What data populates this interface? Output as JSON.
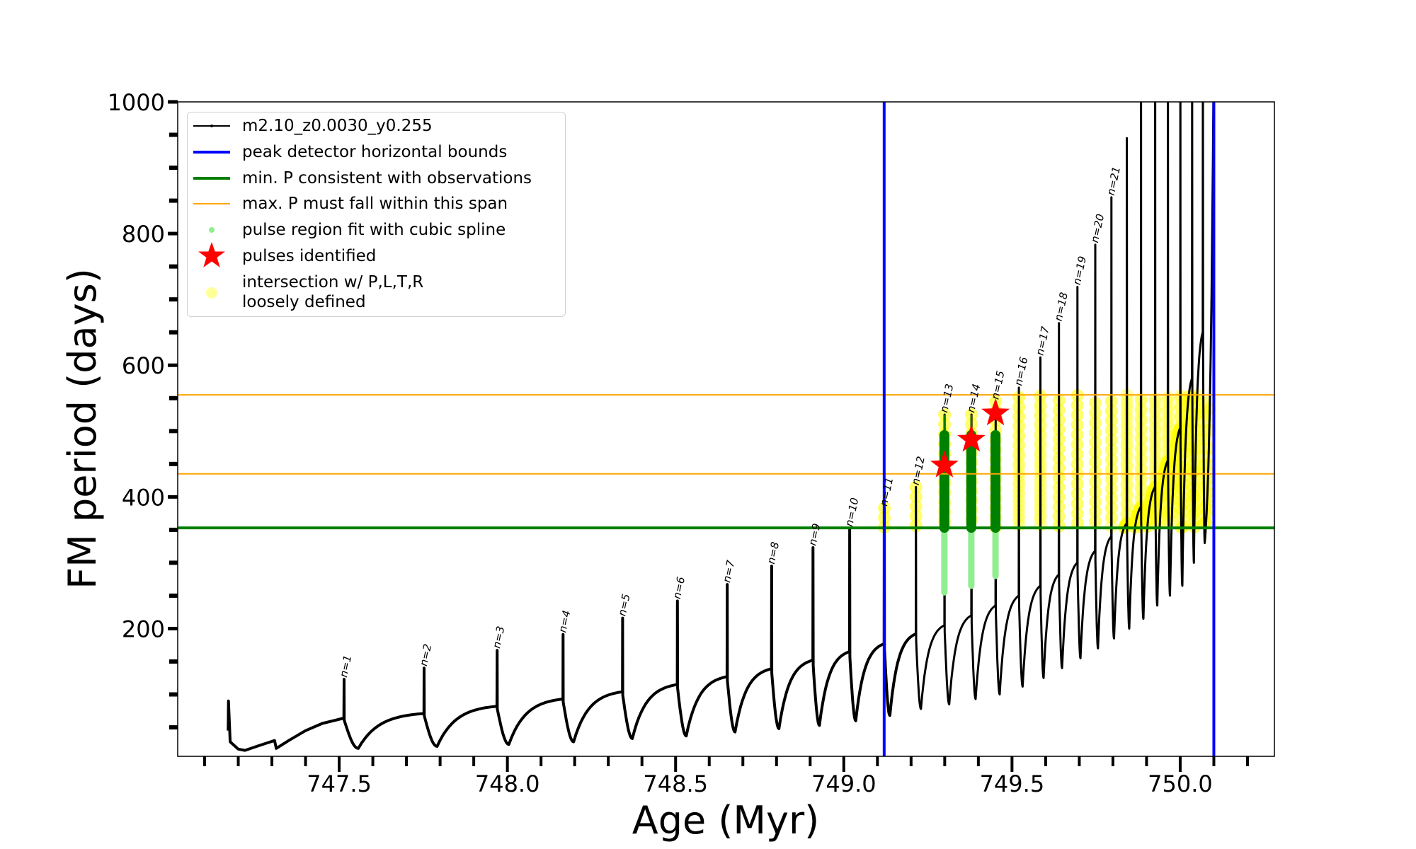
{
  "chart_data": {
    "type": "line",
    "title": "",
    "xlabel": "Age (Myr)",
    "ylabel": "FM period (days)",
    "xlim": [
      747.02,
      750.28
    ],
    "ylim": [
      6,
      1000
    ],
    "xticks": [
      "747.5",
      "748.0",
      "748.5",
      "749.0",
      "749.5",
      "750.0"
    ],
    "yticks": [
      "200",
      "400",
      "600",
      "800",
      "1000"
    ],
    "grid": false,
    "legend_position": "top-left",
    "legend": [
      {
        "label": "m2.10_z0.0030_y0.255",
        "color": "#000000"
      },
      {
        "label": "peak detector horizontal bounds",
        "color": "#0000ff"
      },
      {
        "label": "min. P consistent with observations",
        "color": "#008000"
      },
      {
        "label": "max. P must fall within this span",
        "color": "#ffa500"
      },
      {
        "label": "pulse region fit with cubic spline",
        "color": "#90ee90"
      },
      {
        "label": "pulses identified",
        "color": "#ff0000"
      },
      {
        "label": "intersection w/ P,L,T,R",
        "label2": "loosely defined",
        "color": "#ffff99"
      }
    ],
    "vlines_blue": [
      749.12,
      750.1
    ],
    "hline_green": 353,
    "hlines_orange": [
      435,
      555
    ],
    "pre_pulse_track": [
      [
        747.17,
        45
      ],
      [
        747.171,
        90
      ],
      [
        747.176,
        28
      ],
      [
        747.2,
        17
      ],
      [
        747.22,
        15
      ],
      [
        747.26,
        22
      ],
      [
        747.308,
        30
      ],
      [
        747.313,
        18
      ],
      [
        747.35,
        30
      ],
      [
        747.4,
        45
      ],
      [
        747.45,
        56
      ],
      [
        747.514,
        64
      ]
    ],
    "pulses": [
      {
        "n": "n=1",
        "age": 747.514,
        "peak": 123,
        "plateau": 64,
        "min": 18
      },
      {
        "n": "n=2",
        "age": 747.752,
        "peak": 140,
        "plateau": 71,
        "min": 21
      },
      {
        "n": "n=3",
        "age": 747.969,
        "peak": 167,
        "plateau": 82,
        "min": 24
      },
      {
        "n": "n=4",
        "age": 748.165,
        "peak": 191,
        "plateau": 93,
        "min": 28
      },
      {
        "n": "n=5",
        "age": 748.342,
        "peak": 216,
        "plateau": 104,
        "min": 33
      },
      {
        "n": "n=6",
        "age": 748.505,
        "peak": 242,
        "plateau": 115,
        "min": 37
      },
      {
        "n": "n=7",
        "age": 748.653,
        "peak": 267,
        "plateau": 127,
        "min": 43
      },
      {
        "n": "n=8",
        "age": 748.785,
        "peak": 295,
        "plateau": 139,
        "min": 48
      },
      {
        "n": "n=9",
        "age": 748.908,
        "peak": 323,
        "plateau": 152,
        "min": 53
      },
      {
        "n": "n=10",
        "age": 749.017,
        "peak": 352,
        "plateau": 165,
        "min": 60
      },
      {
        "n": "n=11",
        "age": 749.12,
        "peak": 383,
        "plateau": 177,
        "min": 68
      },
      {
        "n": "n=12",
        "age": 749.214,
        "peak": 415,
        "plateau": 192,
        "min": 78
      },
      {
        "n": "n=13",
        "age": 749.299,
        "peak": 525,
        "plateau": 205,
        "min": 85
      },
      {
        "n": "n=14",
        "age": 749.379,
        "peak": 525,
        "plateau": 220,
        "min": 93
      },
      {
        "n": "n=15",
        "age": 749.451,
        "peak": 545,
        "plateau": 235,
        "min": 100
      },
      {
        "n": "n=16",
        "age": 749.52,
        "peak": 566,
        "plateau": 250,
        "min": 112
      },
      {
        "n": "n=17",
        "age": 749.584,
        "peak": 612,
        "plateau": 265,
        "min": 125
      },
      {
        "n": "n=18",
        "age": 749.639,
        "peak": 664,
        "plateau": 282,
        "min": 140
      },
      {
        "n": "n=19",
        "age": 749.694,
        "peak": 719,
        "plateau": 300,
        "min": 155
      },
      {
        "n": "n=20",
        "age": 749.747,
        "peak": 783,
        "plateau": 318,
        "min": 170
      },
      {
        "n": "n=21",
        "age": 749.795,
        "peak": 855,
        "plateau": 340,
        "min": 185
      },
      {
        "n": "",
        "age": 749.841,
        "peak": 945,
        "plateau": 360,
        "min": 200
      },
      {
        "n": "",
        "age": 749.883,
        "peak": 1100,
        "plateau": 385,
        "min": 215
      },
      {
        "n": "",
        "age": 749.925,
        "peak": 1100,
        "plateau": 415,
        "min": 235
      },
      {
        "n": "",
        "age": 749.963,
        "peak": 1100,
        "plateau": 455,
        "min": 250
      },
      {
        "n": "",
        "age": 750.0,
        "peak": 1100,
        "plateau": 505,
        "min": 265
      },
      {
        "n": "",
        "age": 750.035,
        "peak": 1100,
        "plateau": 580,
        "min": 300
      },
      {
        "n": "",
        "age": 750.067,
        "peak": 1100,
        "plateau": 650,
        "min": 330
      }
    ],
    "final_rise": {
      "age_end": 750.1,
      "value_end": 1100
    },
    "pulses_identified": [
      {
        "age": 749.299,
        "period": 448
      },
      {
        "age": 749.379,
        "period": 487
      },
      {
        "age": 749.451,
        "period": 527
      }
    ],
    "spline_fit_regions": [
      {
        "age": 749.299,
        "low": 255,
        "green_top": 494,
        "stem_top": 525
      },
      {
        "age": 749.379,
        "low": 265,
        "green_top": 494,
        "stem_top": 525
      },
      {
        "age": 749.451,
        "low": 280,
        "green_top": 494,
        "stem_top": 494
      }
    ]
  }
}
